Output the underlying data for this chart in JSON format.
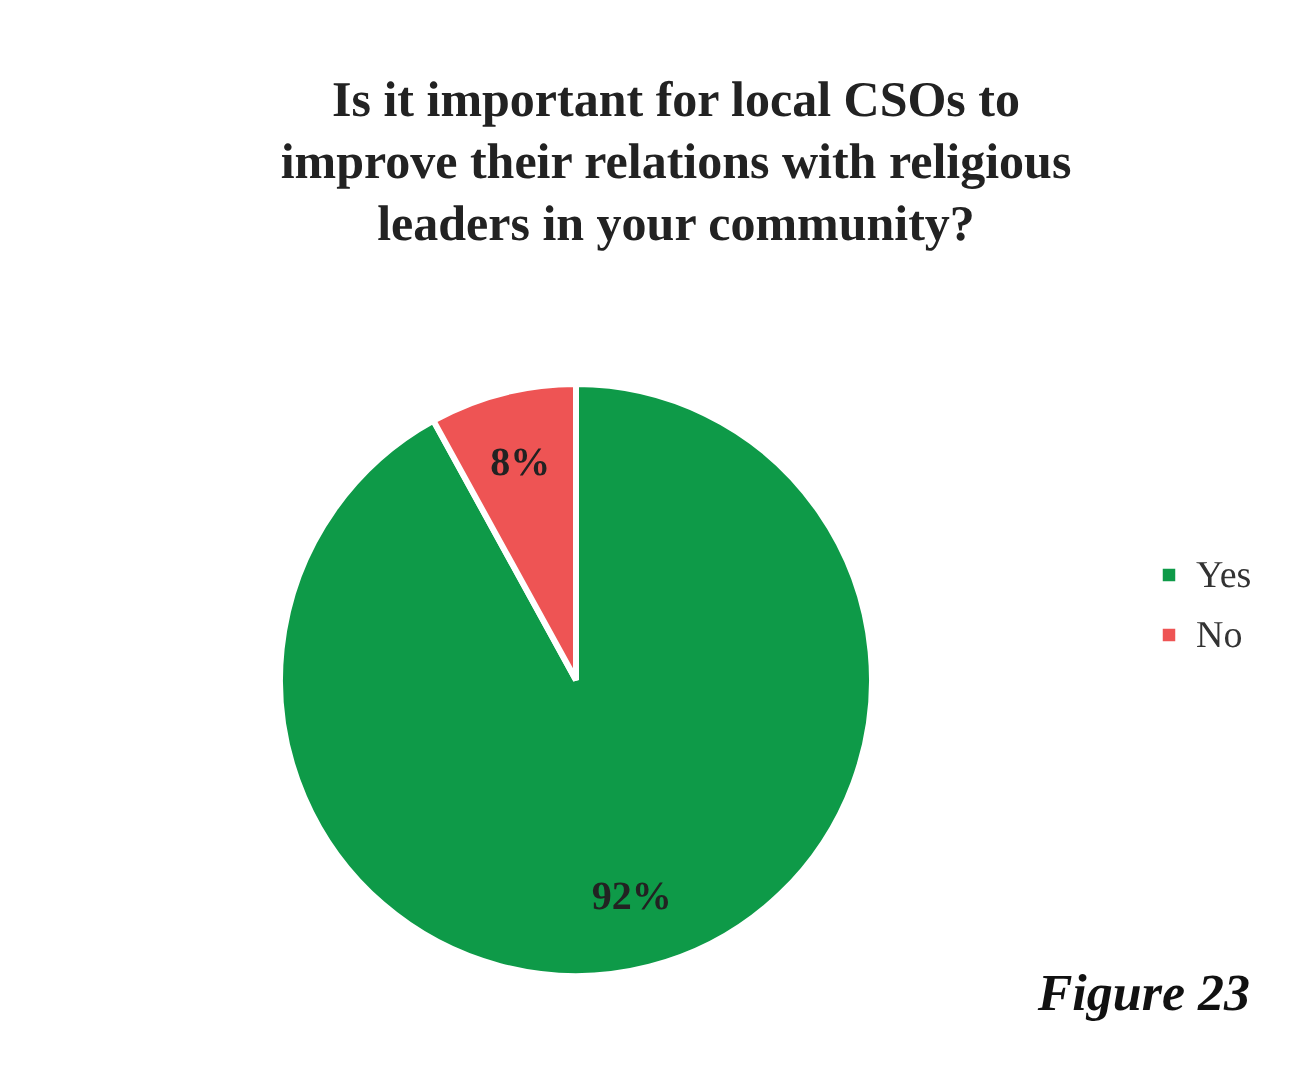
{
  "chart_data": {
    "type": "pie",
    "title": "Is it important for local CSOs to improve their relations with religious leaders in your community?",
    "categories": [
      "Yes",
      "No"
    ],
    "values": [
      92,
      8
    ],
    "colors": [
      "#0e9a48",
      "#ee5454"
    ],
    "value_labels": [
      "92%",
      "8%"
    ],
    "legend": "right",
    "annotations": [
      "Figure 23"
    ]
  }
}
